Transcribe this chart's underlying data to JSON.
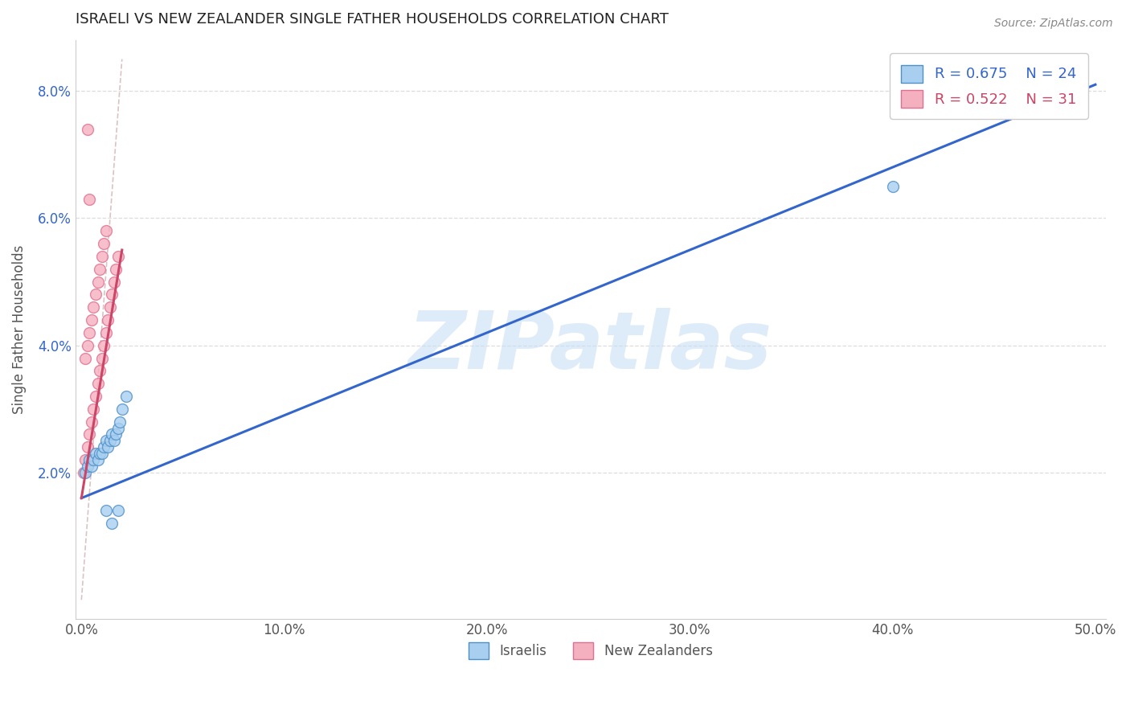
{
  "title": "ISRAELI VS NEW ZEALANDER SINGLE FATHER HOUSEHOLDS CORRELATION CHART",
  "source": "Source: ZipAtlas.com",
  "ylabel": "Single Father Households",
  "xlim": [
    -0.003,
    0.505
  ],
  "ylim": [
    -0.003,
    0.088
  ],
  "x_ticks": [
    0.0,
    0.1,
    0.2,
    0.3,
    0.4,
    0.5
  ],
  "x_tick_labels": [
    "0.0%",
    "10.0%",
    "20.0%",
    "30.0%",
    "40.0%",
    "50.0%"
  ],
  "y_ticks": [
    0.02,
    0.04,
    0.06,
    0.08
  ],
  "y_tick_labels": [
    "2.0%",
    "4.0%",
    "6.0%",
    "8.0%"
  ],
  "israeli_color": "#a8cff0",
  "nz_color": "#f5b0c0",
  "israeli_edge_color": "#5090c8",
  "nz_edge_color": "#e07090",
  "israeli_line_color": "#3366cc",
  "nz_line_color": "#cc4466",
  "ref_line_color": "#ccaaaa",
  "R_israeli": 0.675,
  "N_israeli": 24,
  "R_nz": 0.522,
  "N_nz": 31,
  "watermark_color": "#c8dff5",
  "background_color": "#ffffff",
  "grid_color": "#dddddd",
  "title_color": "#222222",
  "source_color": "#888888",
  "ylabel_color": "#555555",
  "tick_color": "#555555",
  "ytick_color": "#3366cc",
  "legend_text_color_1": "#3366cc",
  "legend_text_color_2": "#cc4466",
  "israeli_x": [
    0.002,
    0.003,
    0.004,
    0.005,
    0.006,
    0.007,
    0.008,
    0.009,
    0.01,
    0.011,
    0.012,
    0.013,
    0.014,
    0.015,
    0.016,
    0.017,
    0.018,
    0.019,
    0.012,
    0.015,
    0.018,
    0.02,
    0.4,
    0.022
  ],
  "israeli_y": [
    0.02,
    0.021,
    0.022,
    0.021,
    0.022,
    0.023,
    0.022,
    0.023,
    0.023,
    0.024,
    0.025,
    0.024,
    0.025,
    0.026,
    0.025,
    0.026,
    0.027,
    0.028,
    0.014,
    0.012,
    0.014,
    0.03,
    0.065,
    0.032
  ],
  "nz_x": [
    0.001,
    0.002,
    0.002,
    0.003,
    0.003,
    0.004,
    0.004,
    0.005,
    0.005,
    0.006,
    0.006,
    0.007,
    0.007,
    0.008,
    0.008,
    0.009,
    0.009,
    0.01,
    0.01,
    0.011,
    0.011,
    0.012,
    0.012,
    0.013,
    0.014,
    0.015,
    0.003,
    0.004,
    0.016,
    0.017,
    0.018
  ],
  "nz_y": [
    0.02,
    0.022,
    0.038,
    0.024,
    0.04,
    0.026,
    0.042,
    0.028,
    0.044,
    0.03,
    0.046,
    0.032,
    0.048,
    0.034,
    0.05,
    0.036,
    0.052,
    0.038,
    0.054,
    0.04,
    0.056,
    0.042,
    0.058,
    0.044,
    0.046,
    0.048,
    0.074,
    0.063,
    0.05,
    0.052,
    0.054
  ],
  "israeli_line_x": [
    0.0,
    0.5
  ],
  "israeli_line_y": [
    0.016,
    0.081
  ],
  "nz_line_x": [
    0.0,
    0.02
  ],
  "nz_line_y": [
    0.016,
    0.055
  ],
  "ref_line_x": [
    0.0,
    0.02
  ],
  "ref_line_y": [
    0.0,
    0.085
  ]
}
